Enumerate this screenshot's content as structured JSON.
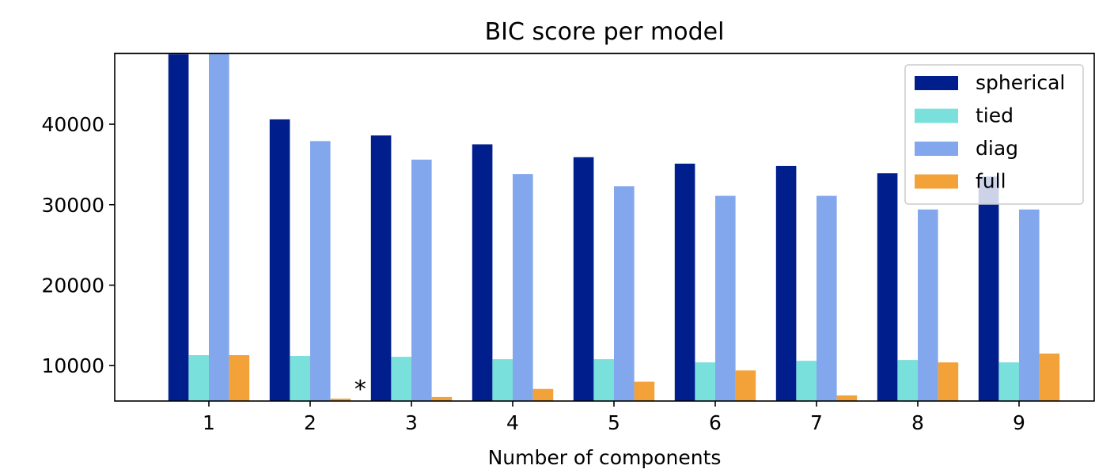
{
  "chart_data": {
    "type": "bar",
    "title": "BIC score per model",
    "xlabel": "Number of components",
    "ylabel": "",
    "categories": [
      "1",
      "2",
      "3",
      "4",
      "5",
      "6",
      "7",
      "8",
      "9"
    ],
    "series": [
      {
        "name": "spherical",
        "color": "#001f8c",
        "values": [
          48700,
          40600,
          38600,
          37500,
          35900,
          35100,
          34800,
          33900,
          33500
        ]
      },
      {
        "name": "tied",
        "color": "#7ae0db",
        "values": [
          11300,
          11200,
          11100,
          10800,
          10800,
          10400,
          10600,
          10700,
          10400
        ]
      },
      {
        "name": "diag",
        "color": "#82a7ec",
        "values": [
          48900,
          37900,
          35600,
          33800,
          32300,
          31100,
          31100,
          29400,
          29400
        ]
      },
      {
        "name": "full",
        "color": "#f3a23a",
        "values": [
          11300,
          5900,
          6100,
          7100,
          8000,
          9400,
          6300,
          10400,
          11500
        ]
      }
    ],
    "ylim": [
      5600,
      48800
    ],
    "yticks": [
      10000,
      20000,
      30000,
      40000
    ],
    "grid": false,
    "legend": "top-right",
    "annotation": {
      "text": "*",
      "category": "2",
      "series": "full"
    }
  }
}
